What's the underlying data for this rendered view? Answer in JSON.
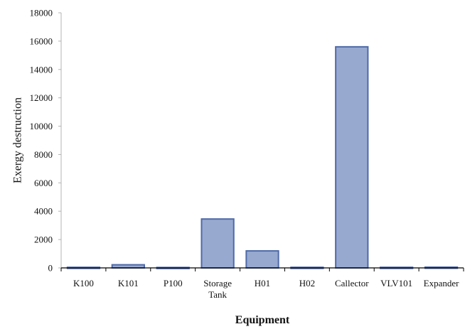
{
  "chart_data": {
    "type": "bar",
    "title": "",
    "xlabel": "Equipment",
    "ylabel": "Exergy destruction",
    "categories": [
      [
        "K100"
      ],
      [
        "K101"
      ],
      [
        "P100"
      ],
      [
        "Storage",
        "Tank"
      ],
      [
        "H01"
      ],
      [
        "H02"
      ],
      [
        "Callector"
      ],
      [
        "VLV101"
      ],
      [
        "Expander"
      ]
    ],
    "values": [
      40,
      220,
      30,
      3450,
      1200,
      40,
      15600,
      40,
      50
    ],
    "ylim": [
      0,
      18000
    ],
    "yticks": [
      0,
      2000,
      4000,
      6000,
      8000,
      10000,
      12000,
      14000,
      16000,
      18000
    ],
    "grid": false,
    "legend": "none",
    "colors": {
      "bar_fill": "#98a9d0",
      "bar_stroke": "#4f6aa8",
      "axis": "#000000",
      "y_axis": "#b3b3b3",
      "text": "#111111"
    }
  }
}
